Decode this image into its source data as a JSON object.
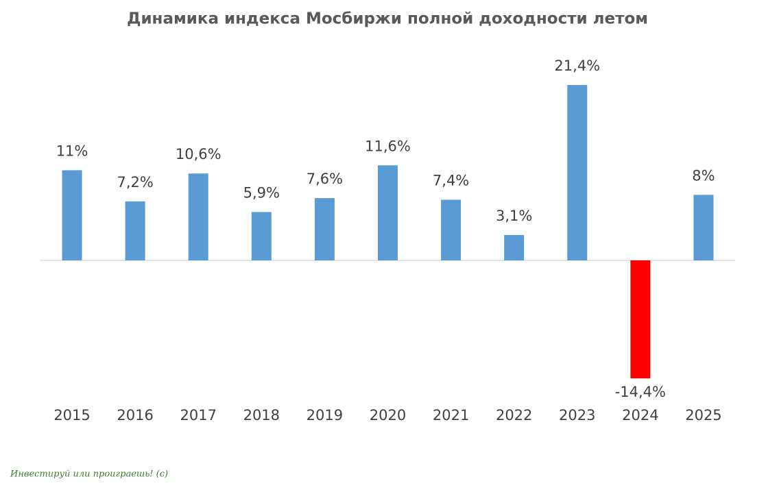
{
  "chart_data": {
    "type": "bar",
    "title": "Динамика индекса Мосбиржи полной доходности летом",
    "categories": [
      "2015",
      "2016",
      "2017",
      "2018",
      "2019",
      "2020",
      "2021",
      "2022",
      "2023",
      "2024",
      "2025"
    ],
    "values": [
      11,
      7.2,
      10.6,
      5.9,
      7.6,
      11.6,
      7.4,
      3.1,
      21.4,
      -14.4,
      8
    ],
    "value_labels": [
      "11%",
      "7,2%",
      "10,6%",
      "5,9%",
      "7,6%",
      "11,6%",
      "7,4%",
      "3,1%",
      "21,4%",
      "-14,4%",
      "8%"
    ],
    "colors": [
      "#5b9bd5",
      "#5b9bd5",
      "#5b9bd5",
      "#5b9bd5",
      "#5b9bd5",
      "#5b9bd5",
      "#5b9bd5",
      "#5b9bd5",
      "#5b9bd5",
      "#ff0000",
      "#5b9bd5"
    ]
  },
  "watermark": "Инвестируй или проиграешь! (с)"
}
